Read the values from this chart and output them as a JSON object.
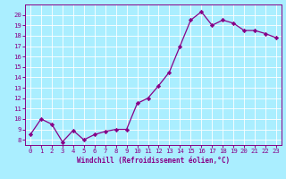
{
  "x": [
    0,
    1,
    2,
    3,
    4,
    5,
    6,
    7,
    8,
    9,
    10,
    11,
    12,
    13,
    14,
    15,
    16,
    17,
    18,
    19,
    20,
    21,
    22,
    23
  ],
  "y": [
    8.5,
    10.0,
    9.5,
    7.8,
    8.9,
    8.0,
    8.5,
    8.8,
    9.0,
    9.0,
    11.5,
    12.0,
    13.2,
    14.5,
    17.0,
    19.5,
    20.3,
    19.0,
    19.5,
    19.2,
    18.5,
    18.5,
    18.2,
    17.8
  ],
  "line_color": "#880088",
  "marker": "D",
  "marker_size": 2.2,
  "bg_color": "#aaeeff",
  "grid_color": "#ffffff",
  "xlabel": "Windchill (Refroidissement éolien,°C)",
  "xlim": [
    -0.5,
    23.5
  ],
  "ylim": [
    7.5,
    21.0
  ],
  "yticks": [
    8,
    9,
    10,
    11,
    12,
    13,
    14,
    15,
    16,
    17,
    18,
    19,
    20
  ],
  "xticks": [
    0,
    1,
    2,
    3,
    4,
    5,
    6,
    7,
    8,
    9,
    10,
    11,
    12,
    13,
    14,
    15,
    16,
    17,
    18,
    19,
    20,
    21,
    22,
    23
  ],
  "label_fontsize": 5.5,
  "tick_fontsize": 5.2,
  "spine_color": "#880088",
  "line_width": 0.9
}
